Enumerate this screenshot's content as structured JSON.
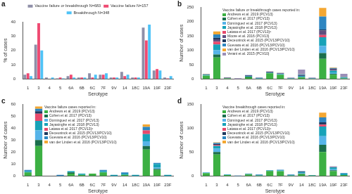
{
  "chart_data": [
    {
      "type": "bar",
      "panel": "a",
      "x_label": "Serotype",
      "y_label": "% of cases",
      "categories": [
        "1",
        "3",
        "4",
        "5",
        "6A",
        "6B",
        "6C",
        "7F",
        "9V",
        "14",
        "18C",
        "19A",
        "19F",
        "23F"
      ],
      "series": [
        {
          "name": "Vaccine failure or breakthrough N=683",
          "color": "#8f8fa8",
          "values": [
            3,
            24,
            1,
            0.5,
            2,
            1,
            4,
            3,
            1,
            5,
            1,
            36,
            6,
            1
          ]
        },
        {
          "name": "Vaccine failure N=157",
          "color": "#ef4a72",
          "values": [
            4,
            39,
            0,
            1,
            3,
            1,
            1,
            3,
            1,
            2,
            1,
            27,
            7,
            0.5
          ]
        },
        {
          "name": "Breakthrough N=348",
          "color": "#4fc3f7",
          "values": [
            2,
            20,
            1,
            0.5,
            1,
            1,
            3,
            4,
            1,
            3,
            1,
            38,
            6,
            2
          ]
        }
      ],
      "ylim": [
        0,
        40
      ],
      "yticks": [
        0,
        10,
        20,
        30,
        40
      ],
      "grid": false,
      "legend": "top"
    },
    {
      "type": "bar",
      "panel": "b",
      "x_label": "Serotype",
      "y_label": "Number of cases",
      "legend_title": "Vaccine failure or breakthrough cases reported in:",
      "categories": [
        "1",
        "3",
        "4",
        "5",
        "6A",
        "6B",
        "6C",
        "7F",
        "9V",
        "14",
        "18C",
        "19A",
        "19F",
        "23F"
      ],
      "series": [
        {
          "name": "Andrews et al. 2019 (PCV13)",
          "color": "#3cb043",
          "values": [
            12,
            75,
            2,
            0,
            6,
            1,
            20,
            15,
            1,
            5,
            1,
            70,
            15,
            2
          ]
        },
        {
          "name": "Cohen et al. 2017 (PCV13)",
          "color": "#1a6e4c",
          "values": [
            0,
            10,
            0,
            0,
            2,
            0,
            1,
            0,
            0,
            2,
            0,
            20,
            3,
            0
          ]
        },
        {
          "name": "Dominguez et al. 2017 (PCV13)",
          "color": "#56b4e9",
          "values": [
            1,
            15,
            0,
            0,
            1,
            0,
            0,
            1,
            0,
            1,
            0,
            25,
            3,
            0
          ]
        },
        {
          "name": "Jayasinghe et al. 2018 (PCV13)",
          "color": "#17a2b8",
          "values": [
            2,
            20,
            1,
            0,
            2,
            1,
            2,
            2,
            1,
            3,
            1,
            30,
            8,
            3
          ]
        },
        {
          "name": "Latasa et al. 2017 (PCV13)ᵃ",
          "color": "#e84a6c",
          "values": [
            0,
            10,
            0,
            0,
            0,
            0,
            0,
            0,
            0,
            0,
            0,
            8,
            1,
            0
          ]
        },
        {
          "name": "Moore et al. 2016 (PCV13)",
          "color": "#5e4f7e",
          "values": [
            1,
            8,
            2,
            0,
            2,
            1,
            3,
            2,
            1,
            2,
            1,
            15,
            5,
            1
          ]
        },
        {
          "name": "Deceuninck et al. 2015 (PCV13/PCV10)",
          "color": "#1f3a5f",
          "values": [
            0,
            5,
            0,
            0,
            0,
            0,
            0,
            0,
            0,
            1,
            0,
            4,
            1,
            0
          ]
        },
        {
          "name": "Guevara et al. 2016 (PCV13/PCV10)",
          "color": "#2e86c1",
          "values": [
            1,
            12,
            0,
            0,
            1,
            1,
            0,
            1,
            0,
            2,
            0,
            45,
            2,
            1
          ]
        },
        {
          "name": "van der Linden et al. 2016 (PCV13/PCV10)",
          "color": "#f4a732",
          "values": [
            1,
            10,
            0,
            0,
            0,
            0,
            0,
            1,
            0,
            1,
            0,
            30,
            2,
            1
          ]
        },
        {
          "name": "Verani et al. 2015 (PCV10)",
          "color": "#9b8fb8",
          "values": [
            0,
            0,
            0,
            3,
            0,
            2,
            0,
            0,
            2,
            16,
            2,
            0,
            0,
            10
          ]
        }
      ],
      "ylim": [
        0,
        250
      ],
      "yticks": [
        0,
        50,
        100,
        150,
        200,
        250
      ],
      "stacked": true,
      "grid": false,
      "legend": "top"
    },
    {
      "type": "bar",
      "panel": "c",
      "x_label": "Serotype",
      "y_label": "Number of cases",
      "legend_title": "Vaccine failure cases reported in:",
      "categories": [
        "1",
        "3",
        "4",
        "5",
        "6A",
        "6B",
        "6C",
        "7F",
        "9V",
        "14",
        "18C",
        "19A",
        "19F",
        "23F"
      ],
      "series": [
        {
          "name": "Andrews et al. 2019 (PCV13)",
          "color": "#3cb043",
          "values": [
            3,
            25,
            0,
            0,
            2,
            1,
            2,
            3,
            0,
            1,
            0,
            22,
            5,
            0
          ]
        },
        {
          "name": "Cohen et al. 2017 (PCV13)",
          "color": "#1a6e4c",
          "values": [
            0,
            5,
            0,
            0,
            1,
            0,
            0,
            0,
            0,
            0,
            0,
            3,
            1,
            0
          ]
        },
        {
          "name": "Dominguez et al. 2017 (PCV13)",
          "color": "#56b4e9",
          "values": [
            0,
            8,
            0,
            0,
            0,
            0,
            0,
            0,
            0,
            0,
            0,
            4,
            1,
            0
          ]
        },
        {
          "name": "Jayasinghe et al. 2018 (PCV13)",
          "color": "#17a2b8",
          "values": [
            1,
            8,
            0,
            0,
            1,
            1,
            0,
            1,
            1,
            1,
            1,
            6,
            3,
            1
          ]
        },
        {
          "name": "Latasa et al. 2017 (PCV13)ᵃ",
          "color": "#e84a6c",
          "values": [
            0,
            6,
            0,
            0,
            0,
            0,
            0,
            0,
            0,
            0,
            0,
            3,
            0,
            0
          ]
        },
        {
          "name": "Deceuninck et al. 2015 (PCV13/PCV10)",
          "color": "#1f3a5f",
          "values": [
            0,
            2,
            0,
            0,
            0,
            0,
            0,
            0,
            0,
            0,
            0,
            0,
            0,
            0
          ]
        },
        {
          "name": "Guevara et al. 2016 (PCV13/PCV10)",
          "color": "#2e86c1",
          "values": [
            1,
            2,
            0,
            1,
            0,
            0,
            0,
            1,
            0,
            1,
            0,
            3,
            1,
            0
          ]
        },
        {
          "name": "van der Linden et al. 2016 (PCV13/PCV10)",
          "color": "#f4a732",
          "values": [
            0,
            2,
            0,
            0,
            0,
            0,
            0,
            0,
            0,
            0,
            0,
            2,
            0,
            0
          ]
        }
      ],
      "ylim": [
        0,
        60
      ],
      "yticks": [
        0,
        10,
        20,
        30,
        40,
        50,
        60
      ],
      "stacked": true,
      "grid": false,
      "legend": "top"
    },
    {
      "type": "bar",
      "panel": "d",
      "x_label": "Serotype",
      "y_label": "Number of cases",
      "legend_title": "Vaccine breakthrough cases reported in:",
      "categories": [
        "1",
        "3",
        "4",
        "5",
        "6A",
        "6B",
        "6C",
        "7F",
        "9V",
        "14",
        "18C",
        "19A",
        "19F",
        "23F"
      ],
      "series": [
        {
          "name": "Andrews et al. 2019 (PCV13)",
          "color": "#3cb043",
          "values": [
            6,
            45,
            2,
            0,
            3,
            1,
            10,
            10,
            1,
            4,
            1,
            50,
            10,
            2
          ]
        },
        {
          "name": "Cohen et al. 2017 (PCV13)",
          "color": "#1a6e4c",
          "values": [
            0,
            5,
            0,
            0,
            1,
            0,
            1,
            0,
            0,
            1,
            0,
            15,
            2,
            0
          ]
        },
        {
          "name": "Dominguez et al. 2017 (PCV13)",
          "color": "#56b4e9",
          "values": [
            1,
            7,
            0,
            0,
            0,
            0,
            0,
            1,
            0,
            1,
            0,
            18,
            2,
            0
          ]
        },
        {
          "name": "Jayasinghe et al. 2018 (PCV13)",
          "color": "#17a2b8",
          "values": [
            1,
            6,
            1,
            0,
            1,
            1,
            1,
            1,
            1,
            2,
            1,
            20,
            4,
            3
          ]
        },
        {
          "name": "Latasa et al. 2017 (PCV13)ᵃ",
          "color": "#e84a6c",
          "values": [
            0,
            2,
            0,
            0,
            0,
            0,
            0,
            0,
            0,
            0,
            0,
            4,
            1,
            0
          ]
        },
        {
          "name": "Deceuninck et al. 2015 (PCV13/PCV10)",
          "color": "#1f3a5f",
          "values": [
            0,
            2,
            0,
            0,
            0,
            0,
            0,
            0,
            0,
            1,
            0,
            5,
            0,
            0
          ]
        },
        {
          "name": "Guevara et al. 2016 (PCV13/PCV10)",
          "color": "#2e86c1",
          "values": [
            0,
            2,
            0,
            1,
            0,
            1,
            0,
            1,
            1,
            1,
            0,
            10,
            1,
            1
          ]
        },
        {
          "name": "van der Linden et al. 2016 (PCV13/PCV10)",
          "color": "#f4a732",
          "values": [
            0,
            1,
            0,
            0,
            0,
            0,
            0,
            0,
            0,
            0,
            0,
            10,
            0,
            0
          ]
        }
      ],
      "ylim": [
        0,
        150
      ],
      "yticks": [
        0,
        50,
        100,
        150
      ],
      "stacked": true,
      "grid": false,
      "legend": "top"
    }
  ]
}
